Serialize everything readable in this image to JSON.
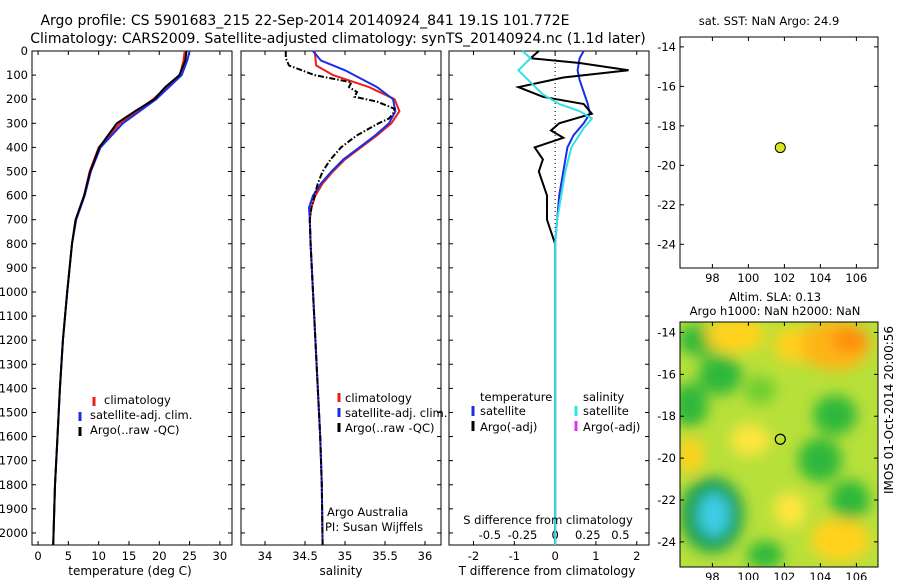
{
  "title": {
    "line1": "Argo profile: CS 5901683_215 22-Sep-2014 20140924_841 19.1S 101.772E",
    "line2": "Climatology: CARS2009. Satellite-adjusted climatology: synTS_20140924.nc (1.1d later)"
  },
  "side_label": "IMOS 01-Oct-2014 20:00:56",
  "colors": {
    "climatology": "#ee1c1c",
    "satellite": "#1a2ee6",
    "argo": "#000000",
    "sat_salinity": "#33e0e6",
    "argo_salinity": "#e633e6",
    "marker_fill": "#d8e61e"
  },
  "chart_data": [
    {
      "type": "line",
      "name": "temperature-profile",
      "xlabel": "temperature (deg C)",
      "ylabel": "",
      "xlim": [
        -1,
        32
      ],
      "ylim": [
        2050,
        0
      ],
      "xticks": [
        0,
        5,
        10,
        15,
        20,
        25,
        30
      ],
      "yticks": [
        0,
        100,
        200,
        300,
        400,
        500,
        600,
        700,
        800,
        900,
        1000,
        1100,
        1200,
        1300,
        1400,
        1500,
        1600,
        1700,
        1800,
        1900,
        2000
      ],
      "legend": [
        "climatology",
        "satellite-adj. clim.",
        "Argo(..raw -QC)"
      ],
      "series": [
        {
          "name": "climatology",
          "depth": [
            0,
            40,
            100,
            200,
            300,
            400,
            500,
            600,
            700,
            800,
            1000,
            1200,
            1400,
            1600,
            1800,
            2050
          ],
          "values": [
            24.2,
            24.0,
            23.4,
            19.0,
            13.5,
            10.0,
            8.5,
            7.6,
            6.2,
            5.6,
            4.8,
            4.1,
            3.6,
            3.2,
            2.8,
            2.5
          ]
        },
        {
          "name": "satellite-adj. clim.",
          "depth": [
            0,
            40,
            100,
            200,
            300,
            400,
            500,
            600,
            700,
            800,
            1000,
            1200,
            1400,
            1600,
            1800,
            2050
          ],
          "values": [
            25.0,
            24.6,
            23.7,
            19.5,
            14.0,
            10.3,
            8.7,
            7.7,
            6.3,
            5.6,
            4.8,
            4.1,
            3.6,
            3.2,
            2.8,
            2.5
          ]
        },
        {
          "name": "Argo(..raw -QC)",
          "depth": [
            0,
            40,
            100,
            150,
            200,
            250,
            300,
            400,
            500,
            600,
            700,
            800,
            1000,
            1200,
            1400,
            1600,
            1800,
            2050
          ],
          "values": [
            24.5,
            24.3,
            23.3,
            21.0,
            19.2,
            16.0,
            13.0,
            10.1,
            8.6,
            7.6,
            6.2,
            5.6,
            4.8,
            4.1,
            3.6,
            3.2,
            2.8,
            2.5
          ]
        }
      ]
    },
    {
      "type": "line",
      "name": "salinity-profile",
      "xlabel": "salinity",
      "ylabel": "",
      "xlim": [
        33.7,
        36.2
      ],
      "ylim": [
        2050,
        0
      ],
      "xticks": [
        34,
        34.5,
        35,
        35.5,
        36
      ],
      "legend": [
        "climatology",
        "satellite-adj. clim.",
        "Argo(..raw -QC)"
      ],
      "annotation": [
        "Argo Australia",
        "PI: Susan Wijffels"
      ],
      "series": [
        {
          "name": "climatology",
          "depth": [
            0,
            60,
            100,
            150,
            200,
            250,
            300,
            350,
            400,
            450,
            500,
            550,
            600,
            650,
            700,
            800,
            1000,
            1200,
            1400,
            1600,
            1800,
            2050
          ],
          "values": [
            34.62,
            34.64,
            34.85,
            35.3,
            35.62,
            35.68,
            35.58,
            35.4,
            35.2,
            35.0,
            34.85,
            34.72,
            34.63,
            34.58,
            34.56,
            34.57,
            34.6,
            34.63,
            34.66,
            34.69,
            34.71,
            34.72
          ]
        },
        {
          "name": "satellite-adj. clim.",
          "depth": [
            0,
            40,
            80,
            150,
            200,
            250,
            300,
            350,
            400,
            450,
            500,
            550,
            600,
            650,
            700,
            800,
            1000,
            1200,
            1400,
            1600,
            1800,
            2050
          ],
          "values": [
            34.6,
            34.7,
            35.0,
            35.4,
            35.6,
            35.63,
            35.55,
            35.38,
            35.18,
            34.98,
            34.83,
            34.7,
            34.6,
            34.55,
            34.56,
            34.57,
            34.6,
            34.63,
            34.66,
            34.69,
            34.71,
            34.72
          ]
        },
        {
          "name": "Argo(..raw -QC)",
          "depth": [
            0,
            30,
            60,
            100,
            130,
            150,
            170,
            190,
            210,
            240,
            260,
            280,
            300,
            350,
            400,
            450,
            500,
            550,
            600,
            650,
            700,
            800,
            1000,
            1200,
            1400,
            1600,
            1800,
            2050
          ],
          "values": [
            34.26,
            34.26,
            34.3,
            34.62,
            35.08,
            35.05,
            35.15,
            35.12,
            35.4,
            35.62,
            35.6,
            35.55,
            35.42,
            35.15,
            34.95,
            34.82,
            34.72,
            34.66,
            34.62,
            34.58,
            34.56,
            34.57,
            34.6,
            34.63,
            34.66,
            34.69,
            34.71,
            34.72
          ]
        }
      ]
    },
    {
      "type": "line",
      "name": "difference-profile",
      "xlabel": "T difference from climatology",
      "xlabel_top": "S difference from climatology",
      "xlim": [
        -2.6,
        2.3
      ],
      "ylim": [
        2050,
        0
      ],
      "xticks": [
        -2,
        -1,
        0,
        1,
        2
      ],
      "xticks_s": [
        {
          "value": -1.6,
          "label": "-0.5"
        },
        {
          "value": -0.8,
          "label": "-0.25"
        },
        {
          "value": 0,
          "label": "0"
        },
        {
          "value": 0.8,
          "label": "0.25"
        },
        {
          "value": 1.6,
          "label": "0.5"
        }
      ],
      "legend_temperature": [
        "temperature",
        "satellite",
        "Argo(-adj)"
      ],
      "legend_salinity": [
        "salinity",
        "satellite",
        "Argo(-adj)"
      ],
      "series": [
        {
          "name": "T satellite",
          "depth": [
            0,
            30,
            80,
            120,
            170,
            220,
            260,
            300,
            350,
            400,
            500,
            600,
            700,
            800,
            1000,
            1500,
            2050
          ],
          "values": [
            0.7,
            0.6,
            0.55,
            0.6,
            0.7,
            0.8,
            0.85,
            0.7,
            0.45,
            0.3,
            0.2,
            0.1,
            0.05,
            0.0,
            0.0,
            0.0,
            0.0
          ]
        },
        {
          "name": "T Argo(-adj)",
          "depth": [
            0,
            30,
            50,
            80,
            110,
            150,
            190,
            220,
            260,
            300,
            330,
            360,
            400,
            450,
            500,
            600,
            650,
            700,
            750,
            800,
            1000,
            1500,
            2050
          ],
          "values": [
            -0.4,
            -0.6,
            0.6,
            1.8,
            0.2,
            -0.9,
            -0.3,
            0.7,
            0.9,
            0.1,
            -0.1,
            0.2,
            -0.5,
            -0.3,
            -0.4,
            -0.2,
            -0.2,
            -0.2,
            -0.1,
            0.0,
            0.0,
            0.0,
            0.0
          ]
        },
        {
          "name": "S satellite",
          "depth": [
            0,
            30,
            80,
            130,
            180,
            220,
            250,
            280,
            320,
            400,
            500,
            600,
            700,
            800,
            1000,
            1500,
            2050
          ],
          "values": [
            -0.8,
            -0.6,
            -0.9,
            -0.6,
            -0.3,
            0.1,
            0.6,
            0.9,
            0.7,
            0.4,
            0.25,
            0.15,
            0.05,
            0.0,
            0.0,
            0.0,
            0.0
          ]
        }
      ]
    },
    {
      "type": "scatter",
      "name": "sst-map",
      "title": "sat. SST: NaN Argo: 24.9",
      "xlim": [
        96.2,
        107.2
      ],
      "ylim": [
        -25.2,
        -13.5
      ],
      "xticks": [
        98,
        100,
        102,
        104,
        106
      ],
      "yticks": [
        -14,
        -16,
        -18,
        -20,
        -22,
        -24
      ],
      "points": [
        {
          "x": 101.772,
          "y": -19.1
        }
      ]
    },
    {
      "type": "heatmap",
      "name": "altimetry-map",
      "title": [
        "Altim. SLA: 0.13",
        "Argo h1000: NaN h2000: NaN"
      ],
      "xlim": [
        96.2,
        107.2
      ],
      "ylim": [
        -25.2,
        -13.5
      ],
      "xticks": [
        98,
        100,
        102,
        104,
        106
      ],
      "yticks": [
        -14,
        -16,
        -18,
        -20,
        -22,
        -24
      ],
      "points": [
        {
          "x": 101.772,
          "y": -19.1
        }
      ]
    }
  ]
}
